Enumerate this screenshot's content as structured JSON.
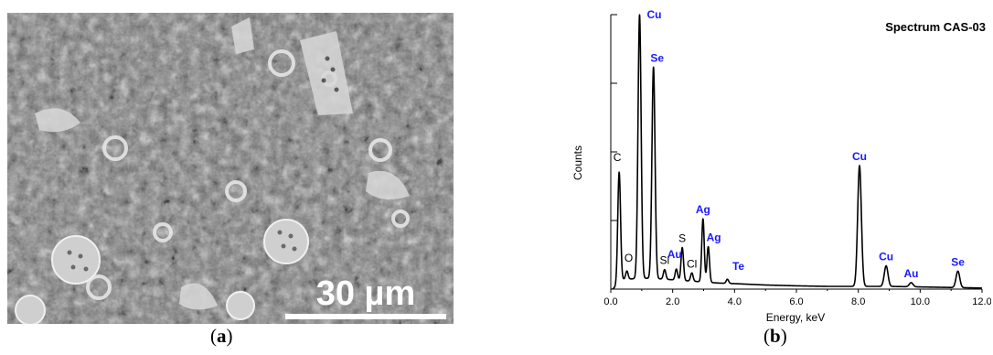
{
  "panel_a": {
    "scale_bar_label": "30 µm",
    "caption_open": "(",
    "caption_letter": "a",
    "caption_close": ")"
  },
  "panel_b": {
    "caption_open": "(",
    "caption_letter": "b",
    "caption_close": ")"
  },
  "chart_data": {
    "type": "line",
    "title": "Spectrum CAS-03",
    "xlabel": "Energy, keV",
    "ylabel": "Counts",
    "xlim": [
      0.0,
      12.0
    ],
    "ylim": [
      0,
      1000
    ],
    "x_ticks": [
      "0.0",
      "2.0",
      "4.0",
      "6.0",
      "8.0",
      "10.0",
      "12.0"
    ],
    "y_ticks_labeled": false,
    "grid": false,
    "line_color": "#000000",
    "baseline": {
      "x": [
        0.05,
        0.15,
        0.4,
        1.0,
        1.5,
        2.5,
        3.5,
        4.0,
        5.0,
        6.0,
        7.0,
        7.5,
        8.5,
        9.0,
        10.0,
        11.0,
        11.5,
        12.0
      ],
      "y": [
        0,
        8,
        35,
        40,
        38,
        30,
        22,
        20,
        15,
        12,
        10,
        10,
        10,
        10,
        8,
        6,
        5,
        4
      ]
    },
    "peaks": [
      {
        "element": "C",
        "energy": 0.27,
        "counts": 405,
        "width": 0.045,
        "label_color": "#000000"
      },
      {
        "element": "O",
        "energy": 0.52,
        "counts": 30,
        "width": 0.04,
        "label_color": "#000000"
      },
      {
        "element": "Cu",
        "energy": 0.93,
        "counts": 960,
        "width": 0.05,
        "label_color": "#1a1aff"
      },
      {
        "element": "Se",
        "energy": 1.38,
        "counts": 770,
        "width": 0.05,
        "label_color": "#1a1aff"
      },
      {
        "element": "Si",
        "energy": 1.74,
        "counts": 35,
        "width": 0.04,
        "label_color": "#000000"
      },
      {
        "element": "Au",
        "energy": 2.12,
        "counts": 40,
        "width": 0.04,
        "label_color": "#1a1aff"
      },
      {
        "element": "S",
        "energy": 2.31,
        "counts": 120,
        "width": 0.04,
        "label_color": "#000000"
      },
      {
        "element": "Cl",
        "energy": 2.62,
        "counts": 30,
        "width": 0.04,
        "label_color": "#000000"
      },
      {
        "element": "Ag",
        "energy": 2.98,
        "counts": 230,
        "width": 0.04,
        "label_color": "#1a1aff"
      },
      {
        "element": "Ag",
        "energy": 3.15,
        "counts": 130,
        "width": 0.04,
        "label_color": "#1a1aff"
      },
      {
        "element": "Te",
        "energy": 3.77,
        "counts": 15,
        "width": 0.04,
        "label_color": "#1a1aff"
      },
      {
        "element": "Cu",
        "energy": 8.04,
        "counts": 440,
        "width": 0.06,
        "label_color": "#1a1aff"
      },
      {
        "element": "Cu",
        "energy": 8.9,
        "counts": 75,
        "width": 0.06,
        "label_color": "#1a1aff"
      },
      {
        "element": "Au",
        "energy": 9.71,
        "counts": 15,
        "width": 0.06,
        "label_color": "#1a1aff"
      },
      {
        "element": "Se",
        "energy": 11.22,
        "counts": 60,
        "width": 0.06,
        "label_color": "#1a1aff"
      }
    ]
  }
}
